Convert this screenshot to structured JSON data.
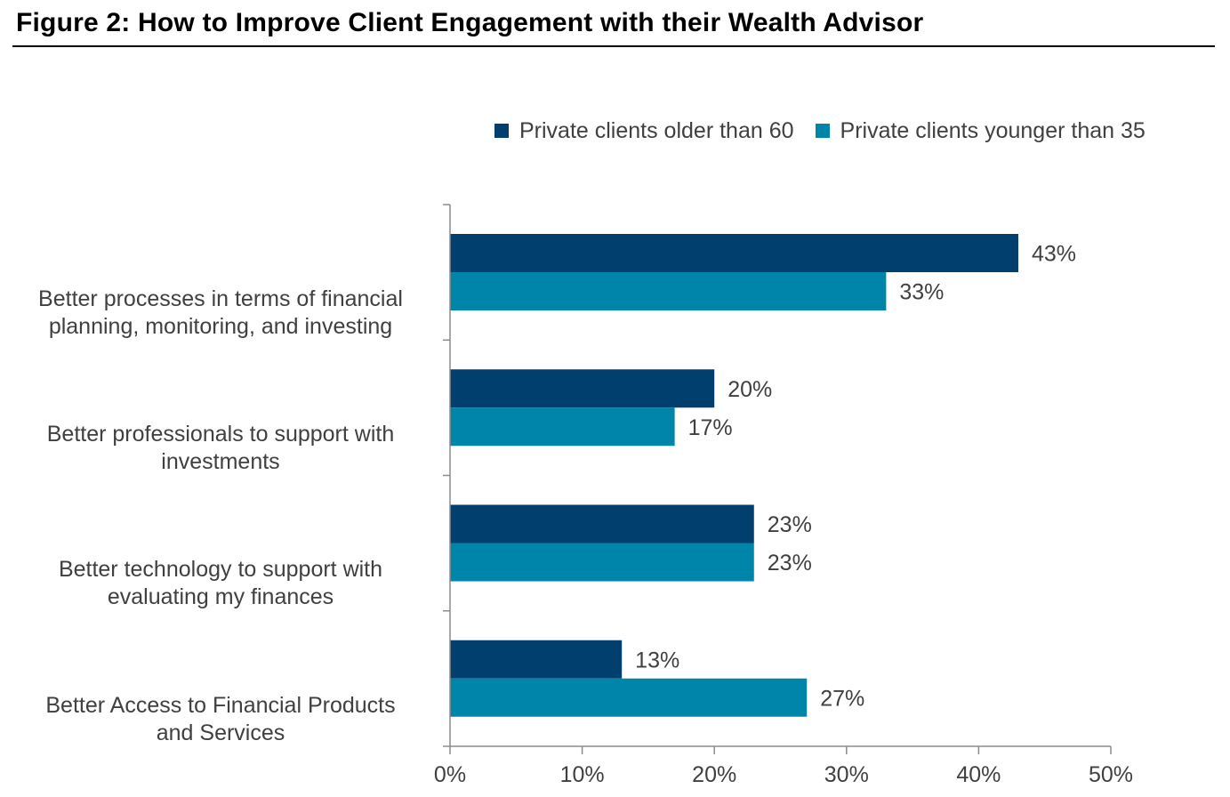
{
  "chart_data": {
    "type": "bar",
    "orientation": "horizontal",
    "title": "Figure 2: How to Improve Client Engagement with their Wealth Advisor",
    "categories": [
      [
        "Better processes in terms of financial",
        "planning, monitoring, and investing"
      ],
      [
        "Better professionals to support with",
        "investments"
      ],
      [
        "Better technology to support with",
        "evaluating my finances"
      ],
      [
        "Better Access to Financial Products",
        "and Services"
      ]
    ],
    "series": [
      {
        "name": "Private clients older than 60",
        "color": "#003F6E",
        "values": [
          43,
          20,
          23,
          13
        ],
        "labels": [
          "43%",
          "20%",
          "23%",
          "13%"
        ]
      },
      {
        "name": "Private clients younger than 35",
        "color": "#0085AA",
        "values": [
          33,
          17,
          23,
          27
        ],
        "labels": [
          "33%",
          "17%",
          "23%",
          "27%"
        ]
      }
    ],
    "xlim": [
      0,
      50
    ],
    "xticks": [
      0,
      10,
      20,
      30,
      40,
      50
    ],
    "xtick_labels": [
      "0%",
      "10%",
      "20%",
      "30%",
      "40%",
      "50%"
    ],
    "xlabel": "",
    "ylabel": "",
    "legend": "top-right",
    "grid": false
  }
}
